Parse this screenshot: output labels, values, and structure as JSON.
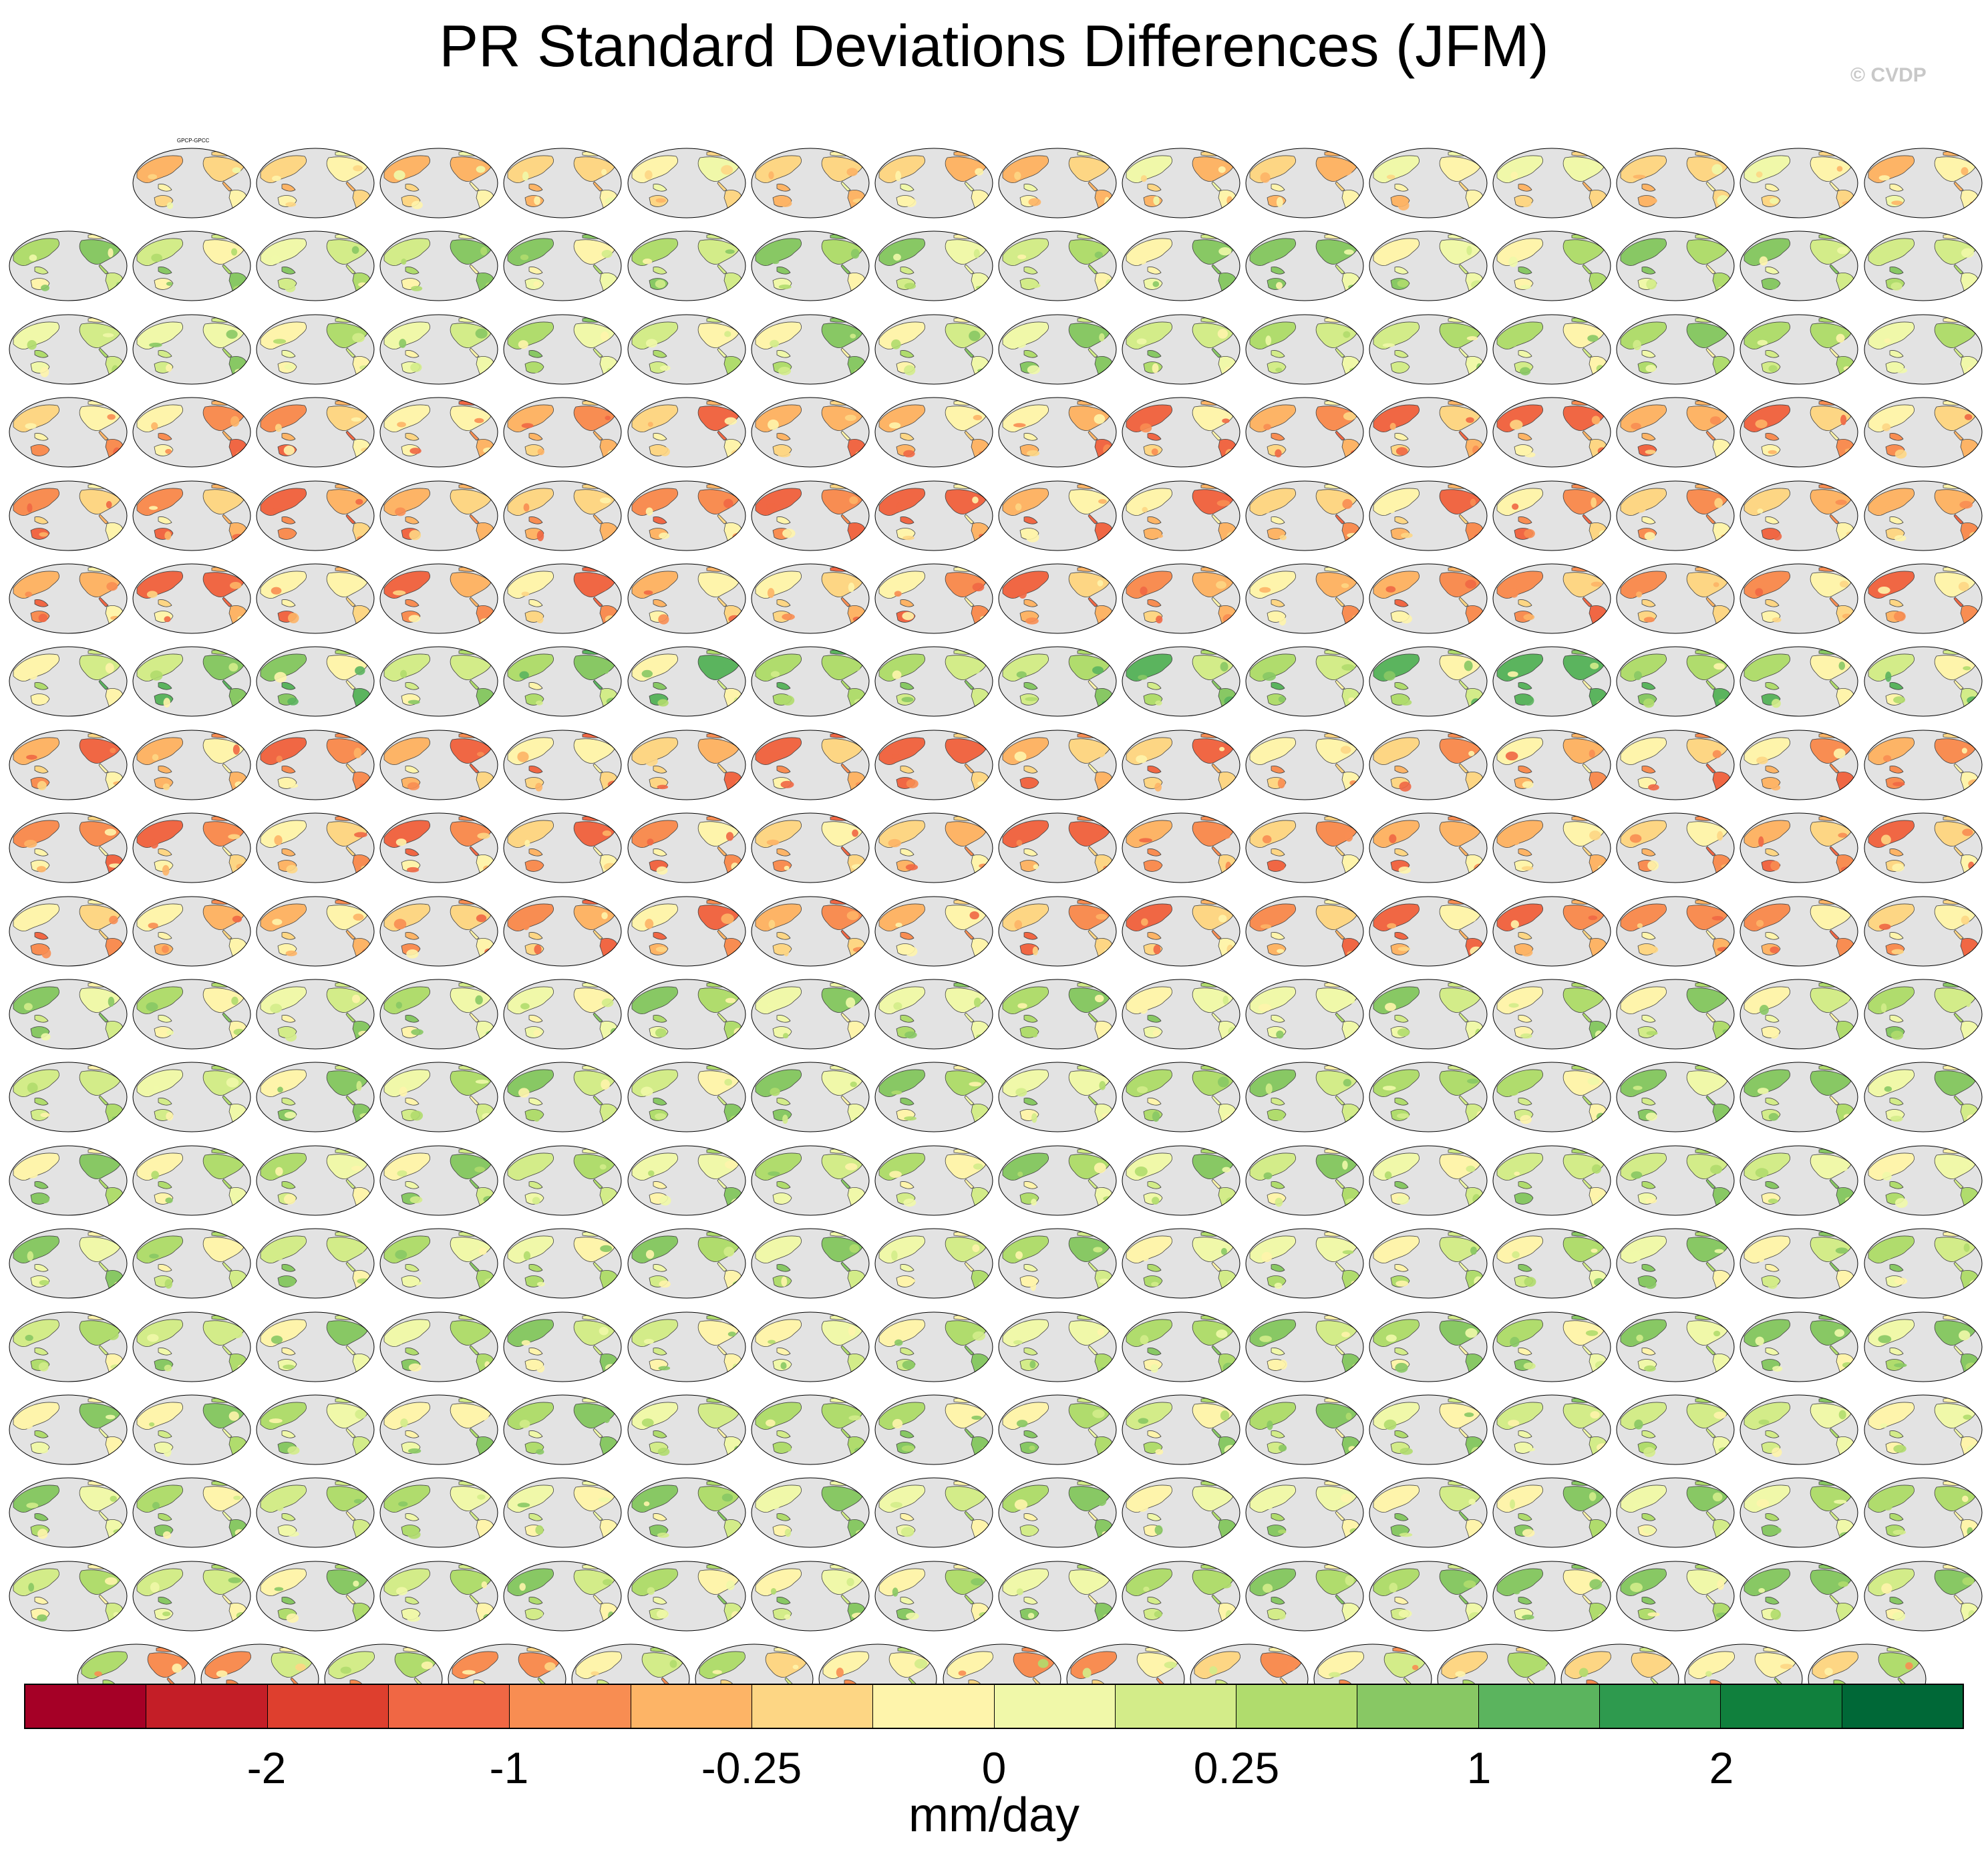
{
  "title": "PR Standard Deviations Differences (JFM)",
  "watermark": "© CVDP",
  "units": "mm/day",
  "colorbar": {
    "colors": [
      "#a50026",
      "#c41e27",
      "#de3f2e",
      "#f06744",
      "#f88d52",
      "#fdb466",
      "#fdd684",
      "#fef4ab",
      "#f0f8a9",
      "#d3ec89",
      "#b0dc6d",
      "#88c864",
      "#5bb45e",
      "#2e9a4e",
      "#10803d",
      "#006837"
    ],
    "tick_labels": [
      "-2",
      "-1",
      "-0.25",
      "0",
      "0.25",
      "1",
      "2"
    ]
  },
  "chart_data": {
    "type": "heatmap",
    "title": "PR Standard Deviations Differences (JFM)",
    "units": "mm/day",
    "colorbar_levels": [
      -2,
      -1,
      -0.25,
      0,
      0.25,
      1,
      2
    ],
    "panel_rows": [
      15,
      16,
      16,
      16,
      16,
      16,
      16,
      16,
      16,
      16,
      16,
      16,
      16,
      16,
      16,
      16,
      16,
      16,
      15
    ],
    "panel_style": [
      "obs",
      "access",
      "access",
      "canesm",
      "canesm",
      "canesm",
      "cesm-small",
      "cesm1",
      "cesm1",
      "cesm1",
      "cesm2",
      "cesm2",
      "cesm2",
      "cesm2",
      "cesm2",
      "cesm2",
      "cesm2",
      "cesm2",
      "cmip6"
    ],
    "first_panel_label": "GPCP-GPCC"
  }
}
